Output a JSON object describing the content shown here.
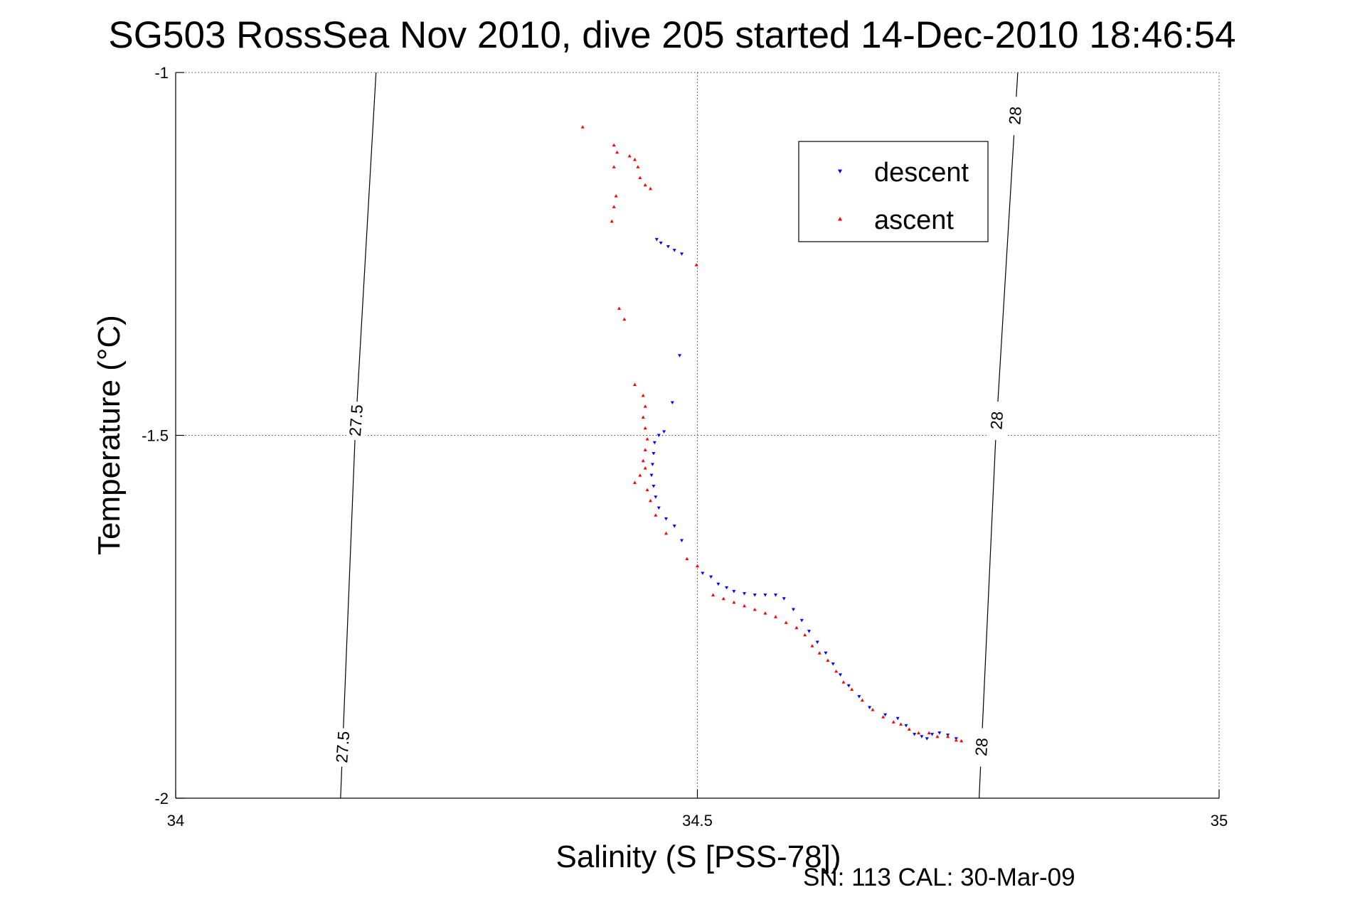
{
  "chart_data": {
    "type": "scatter",
    "title": "SG503 RossSea Nov 2010, dive 205 started 14-Dec-2010 18:46:54",
    "xlabel": "Salinity (S [PSS-78])",
    "ylabel": "Temperature (°C)",
    "xlim": [
      34,
      35
    ],
    "ylim": [
      -2,
      -1
    ],
    "xticks": [
      "34",
      "34.5",
      "35"
    ],
    "yticks": [
      "-1",
      "-1.5",
      "-2"
    ],
    "grid": true,
    "legend_position": "top-right",
    "footer": "SN: 113  CAL: 30-Mar-09",
    "density_contours": [
      {
        "label": "27.5",
        "points": [
          [
            34.192,
            -1.0
          ],
          [
            34.172,
            -1.5
          ],
          [
            34.158,
            -2.0
          ]
        ]
      },
      {
        "label": "28",
        "points": [
          [
            34.807,
            -1.0
          ],
          [
            34.786,
            -1.5
          ],
          [
            34.77,
            -2.0
          ]
        ]
      }
    ],
    "series": [
      {
        "name": "descent",
        "color": "#0000ff",
        "marker": "triangle-down",
        "points": [
          [
            34.461,
            -1.23
          ],
          [
            34.465,
            -1.235
          ],
          [
            34.472,
            -1.24
          ],
          [
            34.478,
            -1.245
          ],
          [
            34.485,
            -1.25
          ],
          [
            34.483,
            -1.39
          ],
          [
            34.476,
            -1.455
          ],
          [
            34.468,
            -1.495
          ],
          [
            34.463,
            -1.5
          ],
          [
            34.459,
            -1.51
          ],
          [
            34.458,
            -1.525
          ],
          [
            34.457,
            -1.54
          ],
          [
            34.456,
            -1.555
          ],
          [
            34.458,
            -1.57
          ],
          [
            34.46,
            -1.585
          ],
          [
            34.463,
            -1.6
          ],
          [
            34.47,
            -1.615
          ],
          [
            34.478,
            -1.625
          ],
          [
            34.485,
            -1.645
          ],
          [
            34.505,
            -1.69
          ],
          [
            34.513,
            -1.695
          ],
          [
            34.52,
            -1.705
          ],
          [
            34.528,
            -1.71
          ],
          [
            34.535,
            -1.715
          ],
          [
            34.545,
            -1.718
          ],
          [
            34.555,
            -1.72
          ],
          [
            34.565,
            -1.72
          ],
          [
            34.575,
            -1.72
          ],
          [
            34.583,
            -1.725
          ],
          [
            34.592,
            -1.74
          ],
          [
            34.6,
            -1.755
          ],
          [
            34.607,
            -1.77
          ],
          [
            34.615,
            -1.785
          ],
          [
            34.623,
            -1.8
          ],
          [
            34.63,
            -1.815
          ],
          [
            34.637,
            -1.83
          ],
          [
            34.645,
            -1.845
          ],
          [
            34.655,
            -1.86
          ],
          [
            34.665,
            -1.875
          ],
          [
            34.68,
            -1.885
          ],
          [
            34.692,
            -1.89
          ],
          [
            34.7,
            -1.9
          ],
          [
            34.708,
            -1.912
          ],
          [
            34.715,
            -1.915
          ],
          [
            34.72,
            -1.918
          ],
          [
            34.725,
            -1.912
          ],
          [
            34.732,
            -1.91
          ],
          [
            34.74,
            -1.913
          ],
          [
            34.748,
            -1.918
          ]
        ]
      },
      {
        "name": "ascent",
        "color": "#ff0000",
        "marker": "triangle-up",
        "points": [
          [
            34.39,
            -1.075
          ],
          [
            34.42,
            -1.1
          ],
          [
            34.423,
            -1.11
          ],
          [
            34.42,
            -1.13
          ],
          [
            34.435,
            -1.115
          ],
          [
            34.44,
            -1.12
          ],
          [
            34.443,
            -1.13
          ],
          [
            34.445,
            -1.145
          ],
          [
            34.45,
            -1.155
          ],
          [
            34.455,
            -1.16
          ],
          [
            34.422,
            -1.17
          ],
          [
            34.42,
            -1.185
          ],
          [
            34.418,
            -1.205
          ],
          [
            34.499,
            -1.265
          ],
          [
            34.425,
            -1.325
          ],
          [
            34.43,
            -1.34
          ],
          [
            34.44,
            -1.43
          ],
          [
            34.448,
            -1.445
          ],
          [
            34.45,
            -1.46
          ],
          [
            34.448,
            -1.475
          ],
          [
            34.45,
            -1.49
          ],
          [
            34.452,
            -1.505
          ],
          [
            34.45,
            -1.52
          ],
          [
            34.448,
            -1.535
          ],
          [
            34.45,
            -1.545
          ],
          [
            34.445,
            -1.555
          ],
          [
            34.44,
            -1.565
          ],
          [
            34.452,
            -1.575
          ],
          [
            34.455,
            -1.59
          ],
          [
            34.46,
            -1.61
          ],
          [
            34.47,
            -1.635
          ],
          [
            34.49,
            -1.67
          ],
          [
            34.5,
            -1.68
          ],
          [
            34.515,
            -1.72
          ],
          [
            34.525,
            -1.725
          ],
          [
            34.535,
            -1.73
          ],
          [
            34.545,
            -1.735
          ],
          [
            34.555,
            -1.74
          ],
          [
            34.565,
            -1.745
          ],
          [
            34.575,
            -1.75
          ],
          [
            34.585,
            -1.758
          ],
          [
            34.595,
            -1.765
          ],
          [
            34.603,
            -1.775
          ],
          [
            34.61,
            -1.79
          ],
          [
            34.617,
            -1.8
          ],
          [
            34.625,
            -1.81
          ],
          [
            34.633,
            -1.825
          ],
          [
            34.64,
            -1.84
          ],
          [
            34.648,
            -1.85
          ],
          [
            34.658,
            -1.865
          ],
          [
            34.668,
            -1.878
          ],
          [
            34.678,
            -1.888
          ],
          [
            34.688,
            -1.895
          ],
          [
            34.695,
            -1.898
          ],
          [
            34.703,
            -1.905
          ],
          [
            34.712,
            -1.91
          ],
          [
            34.722,
            -1.91
          ],
          [
            34.73,
            -1.915
          ],
          [
            34.74,
            -1.915
          ],
          [
            34.748,
            -1.92
          ],
          [
            34.753,
            -1.921
          ]
        ]
      }
    ]
  }
}
